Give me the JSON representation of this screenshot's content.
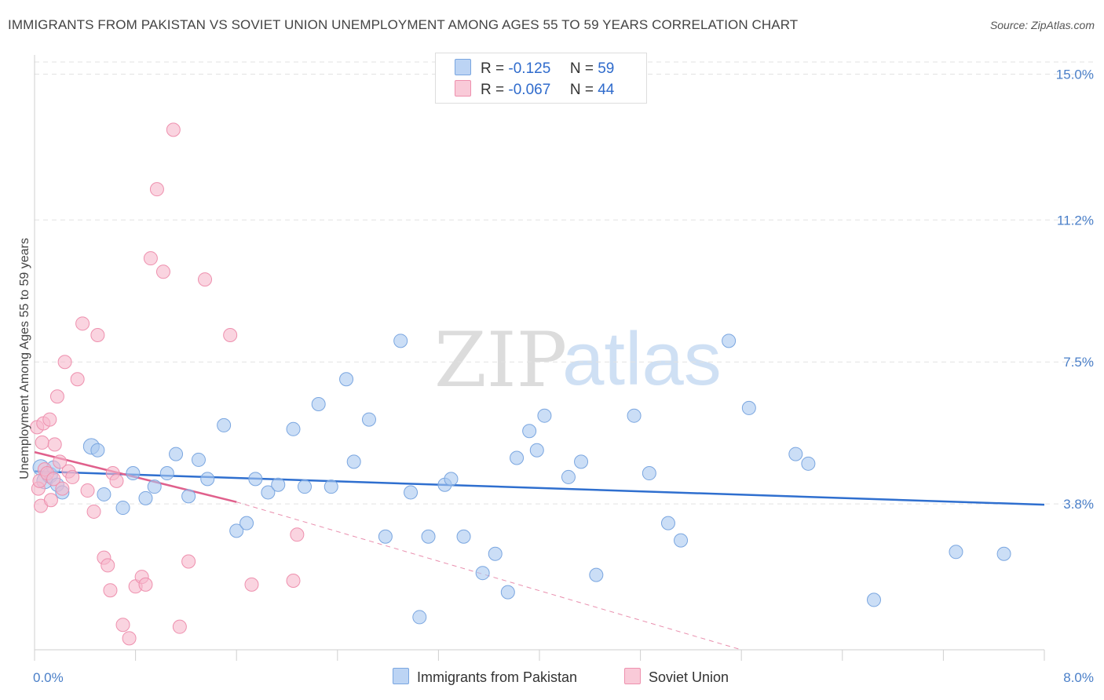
{
  "title": "IMMIGRANTS FROM PAKISTAN VS SOVIET UNION UNEMPLOYMENT AMONG AGES 55 TO 59 YEARS CORRELATION CHART",
  "source": "Source: ZipAtlas.com",
  "watermark": {
    "zip": "ZIP",
    "atlas": "atlas"
  },
  "colors": {
    "blue_fill": "#a9c8f0",
    "blue_stroke": "#7aa6e0",
    "blue_line": "#2f6fcf",
    "pink_fill": "#f6b8cc",
    "pink_stroke": "#ee90ae",
    "pink_line": "#e0608c"
  },
  "legend": {
    "r_label": "R =",
    "n_label": "N =",
    "series": [
      {
        "r": "-0.125",
        "n": "59"
      },
      {
        "r": "-0.067",
        "n": "44"
      }
    ]
  },
  "chart_data": {
    "type": "scatter",
    "ylabel": "Unemployment Among Ages 55 to 59 years",
    "xlim": [
      0,
      8.0
    ],
    "ylim": [
      0,
      15.5
    ],
    "x_ticks": [
      "0.0%",
      "8.0%"
    ],
    "y_ticks": [
      {
        "value": 3.8,
        "label": "3.8%"
      },
      {
        "value": 7.5,
        "label": "7.5%"
      },
      {
        "value": 11.2,
        "label": "11.2%"
      },
      {
        "value": 15.0,
        "label": "15.0%"
      }
    ],
    "grid": true,
    "legend_position": "bottom-center",
    "series": [
      {
        "name": "Immigrants from Pakistan",
        "color": "#a9c8f0",
        "trend": {
          "x": [
            0.0,
            8.0
          ],
          "y": [
            4.65,
            3.78
          ],
          "style": "solid"
        },
        "points": [
          [
            0.05,
            4.75
          ],
          [
            0.08,
            4.4
          ],
          [
            0.12,
            4.55
          ],
          [
            0.15,
            4.75
          ],
          [
            0.18,
            4.3
          ],
          [
            0.22,
            4.1
          ],
          [
            0.45,
            5.3
          ],
          [
            0.5,
            5.2
          ],
          [
            0.55,
            4.05
          ],
          [
            0.7,
            3.7
          ],
          [
            0.78,
            4.6
          ],
          [
            0.88,
            3.95
          ],
          [
            0.95,
            4.25
          ],
          [
            1.05,
            4.6
          ],
          [
            1.12,
            5.1
          ],
          [
            1.22,
            4.0
          ],
          [
            1.3,
            4.95
          ],
          [
            1.37,
            4.45
          ],
          [
            1.5,
            5.85
          ],
          [
            1.6,
            3.1
          ],
          [
            1.68,
            3.3
          ],
          [
            1.75,
            4.45
          ],
          [
            1.85,
            4.1
          ],
          [
            1.93,
            4.3
          ],
          [
            2.05,
            5.75
          ],
          [
            2.14,
            4.25
          ],
          [
            2.25,
            6.4
          ],
          [
            2.35,
            4.25
          ],
          [
            2.47,
            7.05
          ],
          [
            2.53,
            4.9
          ],
          [
            2.65,
            6.0
          ],
          [
            2.78,
            2.95
          ],
          [
            2.9,
            8.05
          ],
          [
            2.98,
            4.1
          ],
          [
            3.05,
            0.85
          ],
          [
            3.12,
            2.95
          ],
          [
            3.25,
            4.3
          ],
          [
            3.3,
            4.45
          ],
          [
            3.4,
            2.95
          ],
          [
            3.55,
            2.0
          ],
          [
            3.65,
            2.5
          ],
          [
            3.75,
            1.5
          ],
          [
            3.82,
            5.0
          ],
          [
            3.92,
            5.7
          ],
          [
            3.98,
            5.2
          ],
          [
            4.04,
            6.1
          ],
          [
            4.23,
            4.5
          ],
          [
            4.33,
            4.9
          ],
          [
            4.45,
            1.95
          ],
          [
            4.75,
            6.1
          ],
          [
            4.87,
            4.6
          ],
          [
            5.02,
            3.3
          ],
          [
            5.12,
            2.85
          ],
          [
            5.5,
            8.05
          ],
          [
            5.66,
            6.3
          ],
          [
            6.03,
            5.1
          ],
          [
            6.13,
            4.85
          ],
          [
            6.65,
            1.3
          ],
          [
            7.3,
            2.55
          ],
          [
            7.68,
            2.5
          ]
        ]
      },
      {
        "name": "Soviet Union",
        "color": "#f6b8cc",
        "trend": {
          "solid": {
            "x": [
              0.0,
              1.6
            ],
            "y": [
              5.15,
              3.85
            ]
          },
          "dashed": {
            "x": [
              1.6,
              5.6
            ],
            "y": [
              3.85,
              0.0
            ]
          }
        },
        "points": [
          [
            0.02,
            5.8
          ],
          [
            0.03,
            4.2
          ],
          [
            0.04,
            4.4
          ],
          [
            0.05,
            3.75
          ],
          [
            0.06,
            5.4
          ],
          [
            0.07,
            5.9
          ],
          [
            0.08,
            4.7
          ],
          [
            0.1,
            4.6
          ],
          [
            0.12,
            6.0
          ],
          [
            0.13,
            3.9
          ],
          [
            0.15,
            4.45
          ],
          [
            0.16,
            5.35
          ],
          [
            0.18,
            6.6
          ],
          [
            0.2,
            4.9
          ],
          [
            0.22,
            4.2
          ],
          [
            0.24,
            7.5
          ],
          [
            0.27,
            4.65
          ],
          [
            0.3,
            4.5
          ],
          [
            0.34,
            7.05
          ],
          [
            0.38,
            8.5
          ],
          [
            0.42,
            4.15
          ],
          [
            0.47,
            3.6
          ],
          [
            0.5,
            8.2
          ],
          [
            0.55,
            2.4
          ],
          [
            0.58,
            2.2
          ],
          [
            0.6,
            1.55
          ],
          [
            0.62,
            4.6
          ],
          [
            0.65,
            4.4
          ],
          [
            0.7,
            0.65
          ],
          [
            0.75,
            0.3
          ],
          [
            0.8,
            1.65
          ],
          [
            0.85,
            1.9
          ],
          [
            0.88,
            1.7
          ],
          [
            0.92,
            10.2
          ],
          [
            0.97,
            12.0
          ],
          [
            1.02,
            9.85
          ],
          [
            1.1,
            13.55
          ],
          [
            1.15,
            0.6
          ],
          [
            1.22,
            2.3
          ],
          [
            1.35,
            9.65
          ],
          [
            1.55,
            8.2
          ],
          [
            1.72,
            1.7
          ],
          [
            2.05,
            1.8
          ],
          [
            2.08,
            3.0
          ]
        ]
      }
    ]
  }
}
